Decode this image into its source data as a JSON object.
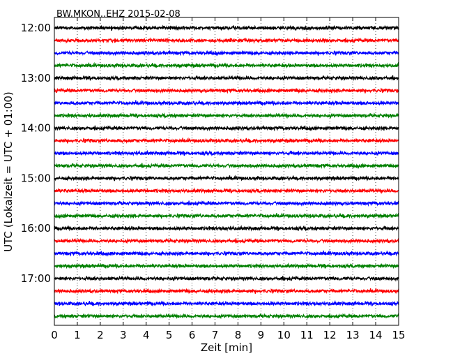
{
  "chart_data": {
    "type": "line",
    "title": "BW.MKON..EHZ 2015-02-08",
    "xlabel": "Zeit  [min]",
    "ylabel": "UTC (Lokalzeit = UTC + 01:00)",
    "xlim": [
      0,
      15
    ],
    "x_ticks": [
      "0",
      "1",
      "2",
      "3",
      "4",
      "5",
      "6",
      "7",
      "8",
      "9",
      "10",
      "11",
      "12",
      "13",
      "14",
      "15"
    ],
    "y_tick_labels": [
      "12:00",
      "13:00",
      "14:00",
      "15:00",
      "16:00",
      "17:00"
    ],
    "grid": "vertical dotted",
    "trace_interval_minutes": 15,
    "colors": [
      "#000000",
      "#ff0000",
      "#0000ff",
      "#008000"
    ],
    "series": [
      {
        "start": "12:00"
      },
      {
        "start": "12:15"
      },
      {
        "start": "12:30"
      },
      {
        "start": "12:45"
      },
      {
        "start": "13:00"
      },
      {
        "start": "13:15"
      },
      {
        "start": "13:30"
      },
      {
        "start": "13:45"
      },
      {
        "start": "14:00"
      },
      {
        "start": "14:15"
      },
      {
        "start": "14:30"
      },
      {
        "start": "14:45"
      },
      {
        "start": "15:00"
      },
      {
        "start": "15:15"
      },
      {
        "start": "15:30"
      },
      {
        "start": "15:45"
      },
      {
        "start": "16:00"
      },
      {
        "start": "16:15"
      },
      {
        "start": "16:30"
      },
      {
        "start": "16:45"
      },
      {
        "start": "17:00"
      },
      {
        "start": "17:15"
      },
      {
        "start": "17:30"
      },
      {
        "start": "17:45"
      }
    ]
  }
}
